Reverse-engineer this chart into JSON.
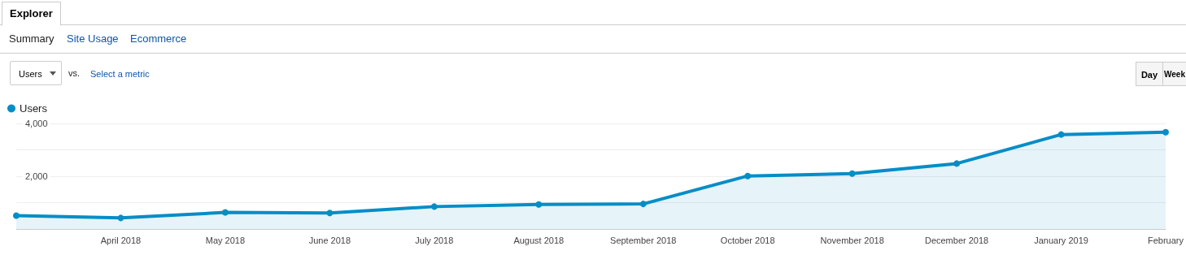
{
  "chart_data": {
    "type": "area",
    "categories": [
      null,
      "April 2018",
      "May 2018",
      "June 2018",
      "July 2018",
      "August 2018",
      "September 2018",
      "October 2018",
      "November 2018",
      "December 2018",
      "January 2019",
      "February"
    ],
    "series": [
      {
        "name": "Users",
        "color": "#058dc7",
        "values": [
          510,
          420,
          630,
          610,
          850,
          930,
          950,
          2010,
          2100,
          2480,
          3580,
          3670
        ]
      }
    ],
    "ylim": [
      0,
      4000
    ],
    "yticks": [
      {
        "value": 1000,
        "label": null
      },
      {
        "value": 2000,
        "label": "2,000"
      },
      {
        "value": 3000,
        "label": null
      },
      {
        "value": 4000,
        "label": "4,000"
      }
    ],
    "grid": "y",
    "legend": "top left",
    "marker": "circle",
    "line_style": "solid",
    "annotations": [
      "Explorer",
      "Summary",
      "Site Usage",
      "Ecommerce",
      "Users",
      "vs.",
      "Select a metric",
      "Day",
      "Week"
    ]
  }
}
